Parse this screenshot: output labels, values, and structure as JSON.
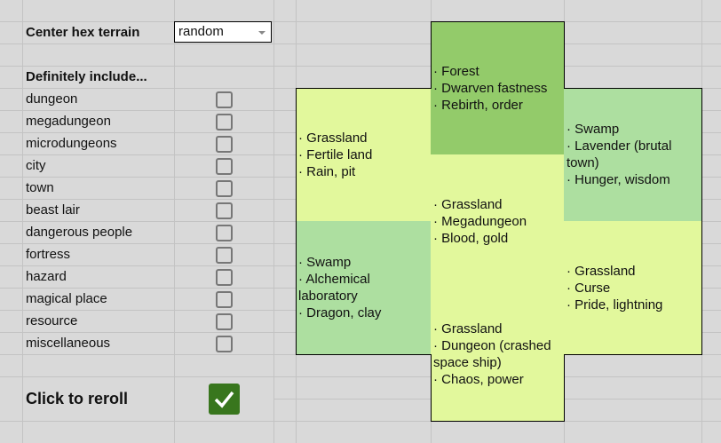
{
  "controls": {
    "center_label": "Center hex terrain",
    "center_value": "random",
    "include_label": "Definitely include...",
    "options": [
      {
        "label": "dungeon",
        "checked": false
      },
      {
        "label": "megadungeon",
        "checked": false
      },
      {
        "label": "microdungeons",
        "checked": false
      },
      {
        "label": "city",
        "checked": false
      },
      {
        "label": "town",
        "checked": false
      },
      {
        "label": "beast lair",
        "checked": false
      },
      {
        "label": "dangerous people",
        "checked": false
      },
      {
        "label": "fortress",
        "checked": false
      },
      {
        "label": "hazard",
        "checked": false
      },
      {
        "label": "magical place",
        "checked": false
      },
      {
        "label": "resource",
        "checked": false
      },
      {
        "label": "miscellaneous",
        "checked": false
      }
    ],
    "reroll_label": "Click to reroll",
    "reroll_checked": true
  },
  "colors": {
    "grassland": "#e2f89c",
    "swamp": "#addfa0",
    "forest": "#93cb6a",
    "reroll": "#38761d"
  },
  "hexes": [
    {
      "id": "north",
      "terrain": "Forest",
      "lines": [
        "· Forest",
        "· Dwarven fastness",
        "· Rebirth, order"
      ]
    },
    {
      "id": "northwest",
      "terrain": "Grassland",
      "lines": [
        "· Grassland",
        "· Fertile land",
        "· Rain, pit"
      ]
    },
    {
      "id": "northeast",
      "terrain": "Swamp",
      "lines": [
        "· Swamp",
        "· Lavender (brutal town)",
        "· Hunger, wisdom"
      ]
    },
    {
      "id": "center",
      "terrain": "Grassland",
      "lines": [
        "· Grassland",
        "· Megadungeon",
        "· Blood, gold"
      ]
    },
    {
      "id": "southwest",
      "terrain": "Swamp",
      "lines": [
        "· Swamp",
        "· Alchemical laboratory",
        "· Dragon, clay"
      ]
    },
    {
      "id": "southeast",
      "terrain": "Grassland",
      "lines": [
        "· Grassland",
        "· Curse",
        "· Pride, lightning"
      ]
    },
    {
      "id": "south",
      "terrain": "Grassland",
      "lines": [
        "· Grassland",
        "· Dungeon (crashed space ship)",
        "· Chaos, power"
      ]
    }
  ]
}
